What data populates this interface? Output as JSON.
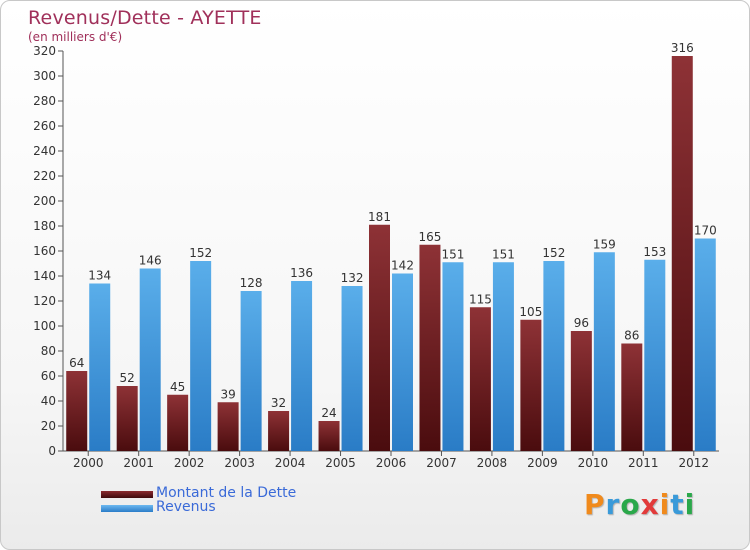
{
  "chart_data": {
    "type": "bar",
    "title": "Revenus/Dette - AYETTE",
    "subtitle": "(en milliers d'€)",
    "categories": [
      "2000",
      "2001",
      "2002",
      "2003",
      "2004",
      "2005",
      "2006",
      "2007",
      "2008",
      "2009",
      "2010",
      "2011",
      "2012"
    ],
    "series": [
      {
        "name": "Montant de la Dette",
        "color": "#7b1e22",
        "values": [
          64,
          52,
          45,
          39,
          32,
          24,
          181,
          165,
          115,
          105,
          96,
          86,
          316
        ]
      },
      {
        "name": "Revenus",
        "color": "#4a9ee0",
        "values": [
          134,
          146,
          152,
          128,
          136,
          132,
          142,
          151,
          151,
          152,
          159,
          153,
          170
        ]
      }
    ],
    "ylim": [
      0,
      320
    ],
    "yticks": [
      0,
      20,
      40,
      60,
      80,
      100,
      120,
      140,
      160,
      180,
      200,
      220,
      240,
      260,
      280,
      300,
      320
    ],
    "xlabel": "",
    "ylabel": "",
    "grid": false,
    "legend_position": "bottom-left"
  },
  "brand": {
    "logo_text": "Proxiti"
  }
}
